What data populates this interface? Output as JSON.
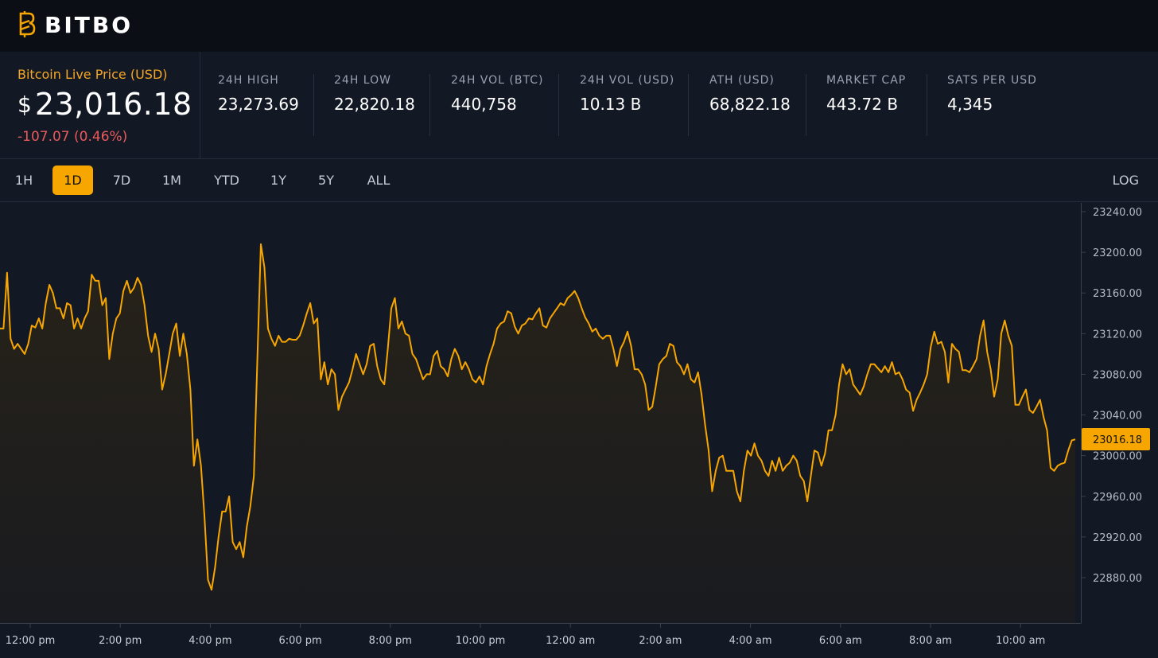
{
  "brand": {
    "name": "BITBO",
    "logo_icon": "bitbo-b-icon",
    "accent": "#f7a600"
  },
  "price": {
    "title": "Bitcoin Live Price (USD)",
    "currency": "$",
    "value": "23,016.18",
    "change": "-107.07 (0.46%)"
  },
  "stats": [
    {
      "label": "24H HIGH",
      "value": "23,273.69"
    },
    {
      "label": "24H LOW",
      "value": "22,820.18"
    },
    {
      "label": "24H VOL (BTC)",
      "value": "440,758"
    },
    {
      "label": "24H VOL (USD)",
      "value": "10.13 B"
    },
    {
      "label": "ATH (USD)",
      "value": "68,822.18"
    },
    {
      "label": "MARKET CAP",
      "value": "443.72 B"
    },
    {
      "label": "SATS PER USD",
      "value": "4,345"
    }
  ],
  "ranges": [
    {
      "label": "1H",
      "active": false
    },
    {
      "label": "1D",
      "active": true
    },
    {
      "label": "7D",
      "active": false
    },
    {
      "label": "1M",
      "active": false
    },
    {
      "label": "YTD",
      "active": false
    },
    {
      "label": "1Y",
      "active": false
    },
    {
      "label": "5Y",
      "active": false
    },
    {
      "label": "ALL",
      "active": false
    }
  ],
  "log_label": "LOG",
  "chart_data": {
    "type": "area",
    "series": [
      {
        "name": "",
        "y": [
          23125,
          23125,
          23180,
          23115,
          23105,
          23110,
          23105,
          23100,
          23110,
          23128,
          23126,
          23135,
          23125,
          23150,
          23168,
          23160,
          23145,
          23145,
          23135,
          23150,
          23148,
          23125,
          23135,
          23125,
          23135,
          23142,
          23178,
          23172,
          23172,
          23148,
          23155,
          23095,
          23120,
          23135,
          23140,
          23162,
          23172,
          23160,
          23165,
          23175,
          23168,
          23148,
          23118,
          23102,
          23120,
          23105,
          23065,
          23080,
          23100,
          23120,
          23130,
          23098,
          23120,
          23100,
          23065,
          22990,
          23016,
          22990,
          22940,
          22878,
          22868,
          22890,
          22920,
          22945,
          22945,
          22960,
          22915,
          22908,
          22915,
          22900,
          22930,
          22950,
          22980,
          23095,
          23208,
          23185,
          23125,
          23115,
          23108,
          23118,
          23112,
          23112,
          23115,
          23114,
          23114,
          23118,
          23128,
          23140,
          23150,
          23130,
          23135,
          23075,
          23092,
          23070,
          23085,
          23080,
          23045,
          23058,
          23065,
          23072,
          23085,
          23100,
          23090,
          23080,
          23090,
          23108,
          23110,
          23088,
          23075,
          23070,
          23105,
          23145,
          23155,
          23125,
          23132,
          23120,
          23118,
          23100,
          23095,
          23085,
          23075,
          23080,
          23080,
          23098,
          23103,
          23088,
          23085,
          23078,
          23095,
          23105,
          23098,
          23085,
          23092,
          23085,
          23075,
          23072,
          23078,
          23070,
          23088,
          23100,
          23110,
          23125,
          23130,
          23132,
          23142,
          23140,
          23127,
          23120,
          23128,
          23130,
          23135,
          23134,
          23140,
          23145,
          23128,
          23126,
          23135,
          23140,
          23145,
          23150,
          23148,
          23155,
          23158,
          23162,
          23155,
          23145,
          23136,
          23130,
          23122,
          23125,
          23118,
          23115,
          23118,
          23118,
          23105,
          23088,
          23105,
          23112,
          23122,
          23108,
          23085,
          23085,
          23080,
          23070,
          23045,
          23048,
          23068,
          23090,
          23095,
          23098,
          23110,
          23108,
          23092,
          23088,
          23080,
          23090,
          23075,
          23072,
          23082,
          23060,
          23030,
          23005,
          22965,
          22985,
          22998,
          23000,
          22985,
          22985,
          22985,
          22965,
          22955,
          22985,
          23005,
          23000,
          23012,
          23000,
          22995,
          22985,
          22980,
          22995,
          22985,
          22998,
          22985,
          22990,
          22993,
          23000,
          22995,
          22980,
          22975,
          22955,
          22980,
          23005,
          23003,
          22990,
          23002,
          23025,
          23025,
          23040,
          23070,
          23090,
          23080,
          23085,
          23070,
          23065,
          23060,
          23068,
          23080,
          23090,
          23090,
          23086,
          23082,
          23088,
          23082,
          23092,
          23080,
          23082,
          23075,
          23065,
          23062,
          23044,
          23055,
          23062,
          23070,
          23080,
          23107,
          23122,
          23110,
          23112,
          23102,
          23072,
          23110,
          23105,
          23102,
          23084,
          23084,
          23082,
          23088,
          23095,
          23118,
          23133,
          23102,
          23085,
          23058,
          23075,
          23120,
          23133,
          23118,
          23108,
          23050,
          23050,
          23058,
          23065,
          23045,
          23042,
          23048,
          23055,
          23038,
          23025,
          22988,
          22985,
          22990,
          22992,
          22993,
          23005,
          23015,
          23016
        ]
      }
    ],
    "x_ticks": [
      "12:00 pm",
      "2:00 pm",
      "4:00 pm",
      "6:00 pm",
      "8:00 pm",
      "10:00 pm",
      "12:00 am",
      "2:00 am",
      "4:00 am",
      "6:00 am",
      "8:00 am",
      "10:00 am"
    ],
    "y_ticks": [
      "23240.00",
      "23200.00",
      "23160.00",
      "23120.00",
      "23080.00",
      "23040.00",
      "23000.00",
      "22960.00",
      "22920.00",
      "22880.00"
    ],
    "ylim": [
      22840,
      23250
    ],
    "current_label": "23016.18",
    "line_color": "#f7a600"
  }
}
